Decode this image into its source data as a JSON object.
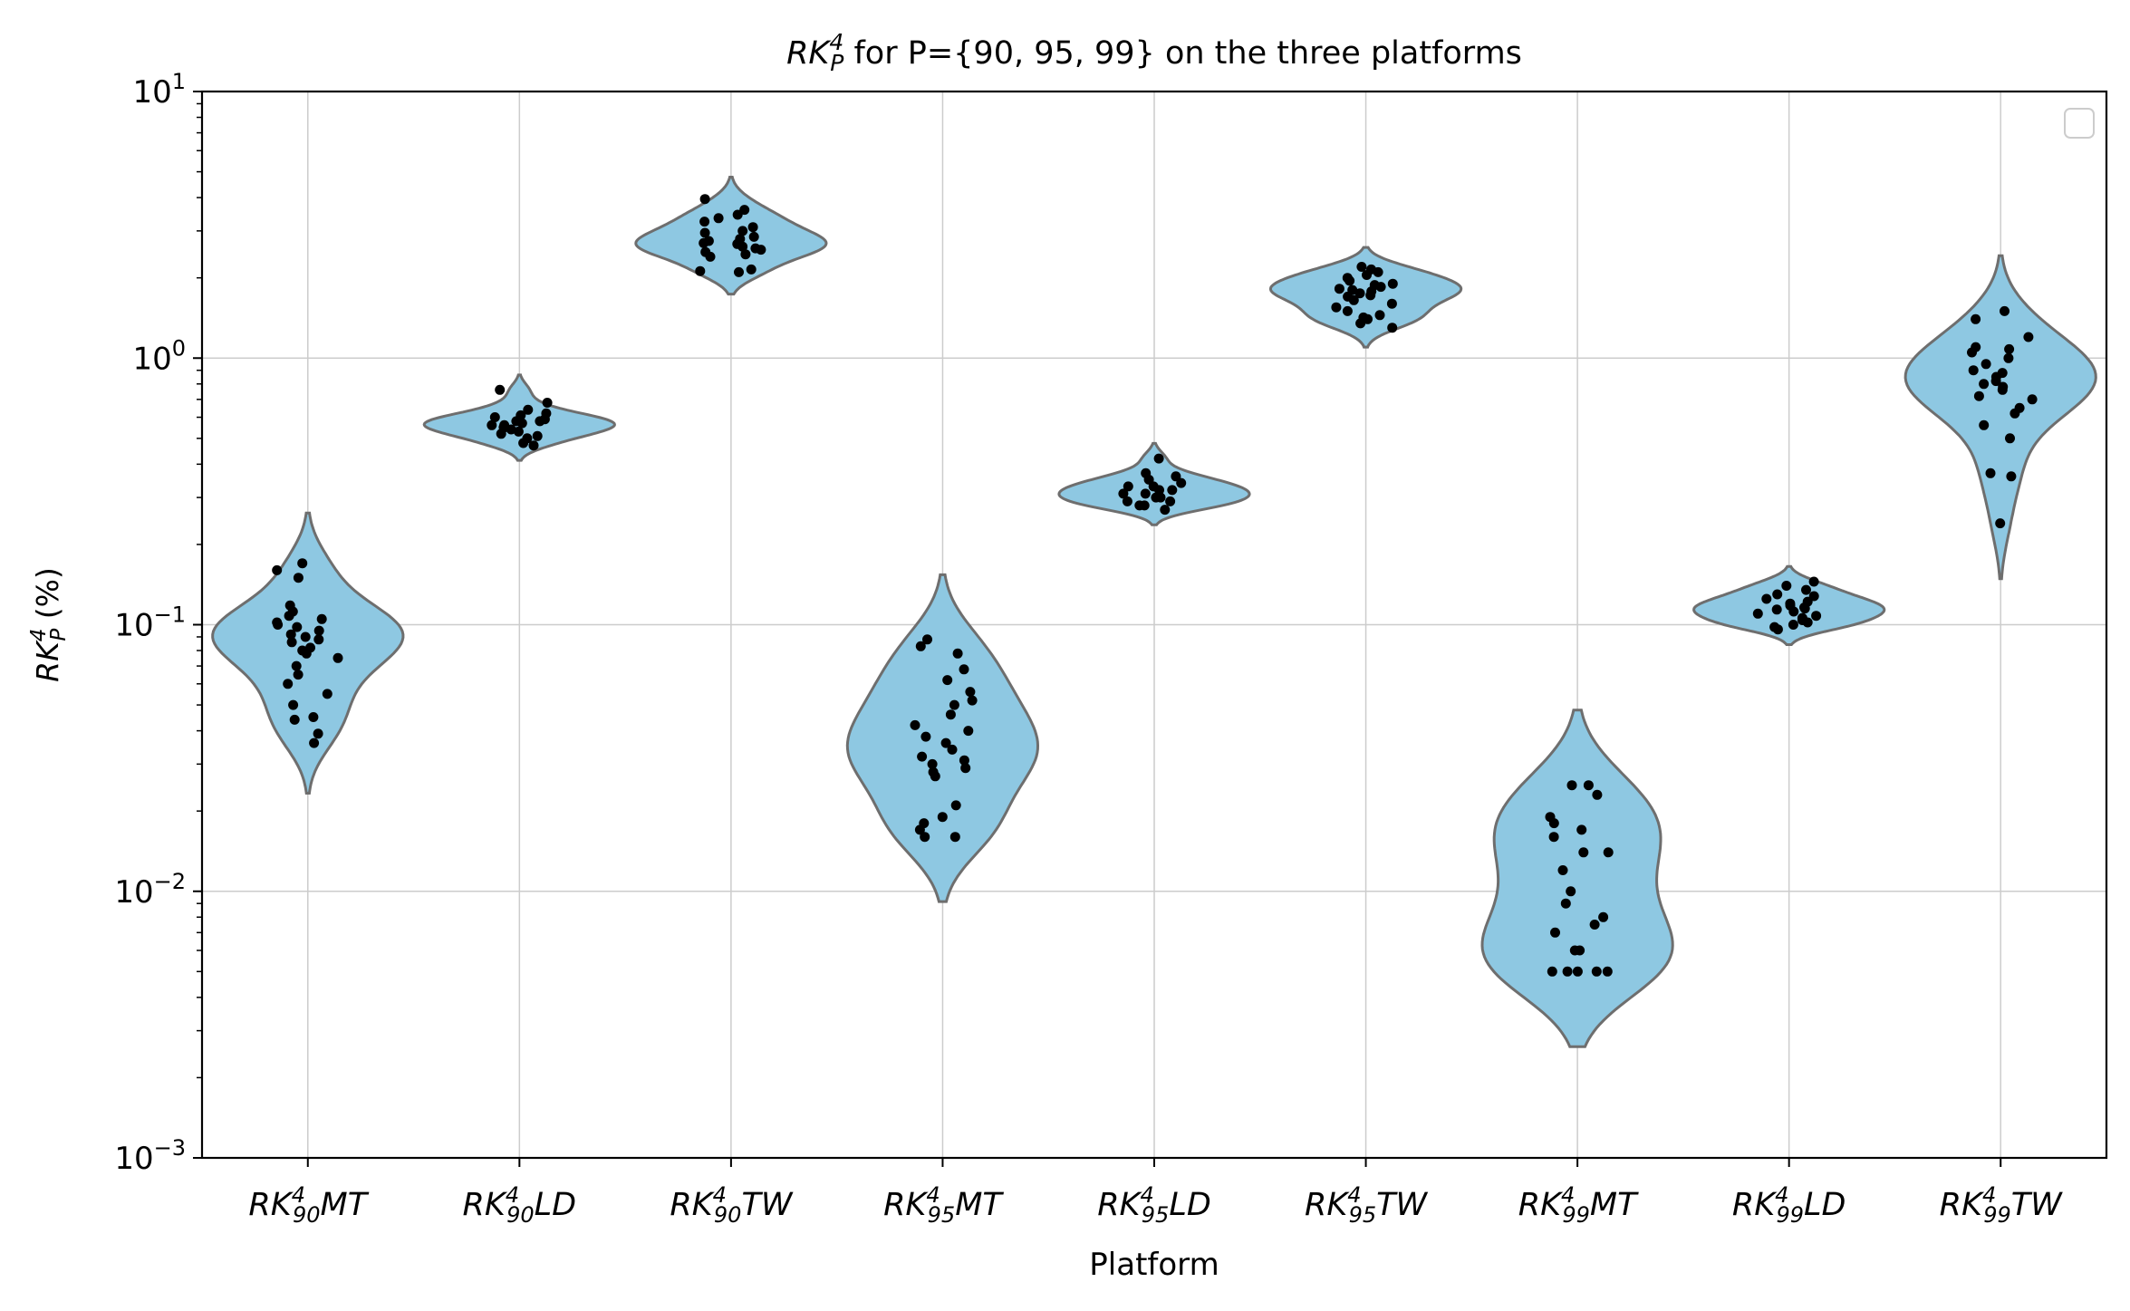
{
  "chart_data": {
    "type": "violin",
    "title": {
      "base": "RK",
      "sup": "4",
      "sub": "P",
      "rest": " for P={90, 95, 99} on the three platforms"
    },
    "xlabel": "Platform",
    "ylabel": {
      "base": "RK",
      "sup": "4",
      "sub": "P",
      "rest": " (%)"
    },
    "yscale": "log",
    "ylim": [
      0.001,
      10
    ],
    "yticks": [
      {
        "value": 10,
        "base": "10",
        "exp": "1"
      },
      {
        "value": 1,
        "base": "10",
        "exp": "0"
      },
      {
        "value": 0.1,
        "base": "10",
        "exp": "−1"
      },
      {
        "value": 0.01,
        "base": "10",
        "exp": "−2"
      },
      {
        "value": 0.001,
        "base": "10",
        "exp": "−3"
      }
    ],
    "grid": true,
    "legend": {
      "position": "top-right",
      "entries": []
    },
    "colors": {
      "fill": "#8ec8e2",
      "edge": "#6e6e6e",
      "point": "#000000",
      "grid": "#cccccc"
    },
    "categories": [
      {
        "base": "RK",
        "sup": "4",
        "sub": "90",
        "suffix": "MT"
      },
      {
        "base": "RK",
        "sup": "4",
        "sub": "90",
        "suffix": "LD"
      },
      {
        "base": "RK",
        "sup": "4",
        "sub": "90",
        "suffix": "TW"
      },
      {
        "base": "RK",
        "sup": "4",
        "sub": "95",
        "suffix": "MT"
      },
      {
        "base": "RK",
        "sup": "4",
        "sub": "95",
        "suffix": "LD"
      },
      {
        "base": "RK",
        "sup": "4",
        "sub": "95",
        "suffix": "TW"
      },
      {
        "base": "RK",
        "sup": "4",
        "sub": "99",
        "suffix": "MT"
      },
      {
        "base": "RK",
        "sup": "4",
        "sub": "99",
        "suffix": "LD"
      },
      {
        "base": "RK",
        "sup": "4",
        "sub": "99",
        "suffix": "TW"
      }
    ],
    "series": [
      {
        "values": [
          0.17,
          0.16,
          0.15,
          0.118,
          0.112,
          0.108,
          0.105,
          0.102,
          0.1,
          0.098,
          0.095,
          0.092,
          0.09,
          0.088,
          0.086,
          0.082,
          0.08,
          0.078,
          0.075,
          0.07,
          0.065,
          0.06,
          0.055,
          0.05,
          0.045,
          0.044,
          0.039,
          0.036
        ]
      },
      {
        "values": [
          0.76,
          0.68,
          0.64,
          0.62,
          0.61,
          0.6,
          0.59,
          0.58,
          0.58,
          0.57,
          0.56,
          0.56,
          0.55,
          0.55,
          0.54,
          0.53,
          0.52,
          0.51,
          0.5,
          0.48,
          0.47
        ]
      },
      {
        "values": [
          3.95,
          3.6,
          3.45,
          3.35,
          3.25,
          3.1,
          3.0,
          2.95,
          2.85,
          2.8,
          2.75,
          2.7,
          2.68,
          2.62,
          2.58,
          2.55,
          2.5,
          2.45,
          2.4,
          2.15,
          2.12,
          2.1
        ]
      },
      {
        "values": [
          0.088,
          0.083,
          0.078,
          0.068,
          0.062,
          0.056,
          0.052,
          0.05,
          0.046,
          0.042,
          0.04,
          0.038,
          0.036,
          0.034,
          0.032,
          0.031,
          0.03,
          0.029,
          0.028,
          0.027,
          0.021,
          0.019,
          0.018,
          0.017,
          0.016,
          0.016
        ]
      },
      {
        "values": [
          0.42,
          0.37,
          0.36,
          0.35,
          0.34,
          0.33,
          0.33,
          0.32,
          0.32,
          0.31,
          0.31,
          0.3,
          0.3,
          0.29,
          0.29,
          0.28,
          0.28,
          0.27
        ]
      },
      {
        "values": [
          2.2,
          2.15,
          2.1,
          2.05,
          2.0,
          1.95,
          1.9,
          1.88,
          1.85,
          1.82,
          1.8,
          1.78,
          1.75,
          1.72,
          1.7,
          1.65,
          1.6,
          1.55,
          1.5,
          1.45,
          1.42,
          1.4,
          1.35,
          1.3
        ]
      },
      {
        "values": [
          0.025,
          0.025,
          0.023,
          0.019,
          0.018,
          0.017,
          0.016,
          0.014,
          0.014,
          0.012,
          0.01,
          0.009,
          0.008,
          0.0075,
          0.007,
          0.006,
          0.006,
          0.005,
          0.005,
          0.005,
          0.005,
          0.005
        ]
      },
      {
        "values": [
          0.145,
          0.14,
          0.135,
          0.13,
          0.128,
          0.125,
          0.122,
          0.12,
          0.118,
          0.116,
          0.115,
          0.114,
          0.112,
          0.11,
          0.108,
          0.106,
          0.104,
          0.102,
          0.1,
          0.098,
          0.096
        ]
      },
      {
        "values": [
          1.5,
          1.4,
          1.2,
          1.1,
          1.08,
          1.05,
          1.0,
          0.95,
          0.9,
          0.88,
          0.85,
          0.82,
          0.8,
          0.78,
          0.76,
          0.72,
          0.7,
          0.65,
          0.62,
          0.56,
          0.5,
          0.37,
          0.36,
          0.24
        ]
      }
    ]
  }
}
